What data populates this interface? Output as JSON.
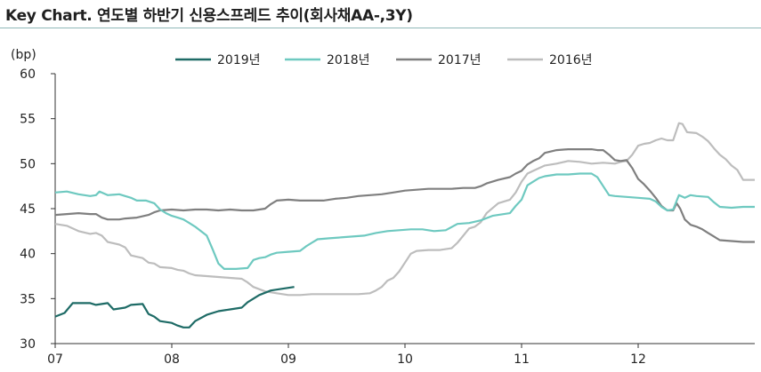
{
  "title": "Key Chart. 연도별 하반기 신용스프레드 추이(회사채AA-,3Y)",
  "chart_data": {
    "type": "line",
    "title": "Key Chart. 연도별 하반기 신용스프레드 추이(회사채AA-,3Y)",
    "ylabel": "(bp)",
    "xlabel": "",
    "ylim": [
      30,
      60
    ],
    "yticks": [
      "30",
      "35",
      "40",
      "45",
      "50",
      "55",
      "60"
    ],
    "xlim": [
      7,
      13
    ],
    "xticks": [
      {
        "x": 7,
        "label": "07"
      },
      {
        "x": 8,
        "label": "08"
      },
      {
        "x": 9,
        "label": "09"
      },
      {
        "x": 10,
        "label": "10"
      },
      {
        "x": 11,
        "label": "11"
      },
      {
        "x": 12,
        "label": "12"
      }
    ],
    "grid": false,
    "legend_position": "top",
    "series": [
      {
        "name": "2019년",
        "color": "#1e6b66",
        "points": [
          [
            7.0,
            33.0
          ],
          [
            7.08,
            33.4
          ],
          [
            7.15,
            34.5
          ],
          [
            7.3,
            34.5
          ],
          [
            7.35,
            34.3
          ],
          [
            7.45,
            34.5
          ],
          [
            7.5,
            33.8
          ],
          [
            7.6,
            34.0
          ],
          [
            7.65,
            34.3
          ],
          [
            7.75,
            34.4
          ],
          [
            7.8,
            33.3
          ],
          [
            7.85,
            33.0
          ],
          [
            7.9,
            32.5
          ],
          [
            8.0,
            32.3
          ],
          [
            8.05,
            32.0
          ],
          [
            8.1,
            31.8
          ],
          [
            8.15,
            31.8
          ],
          [
            8.2,
            32.5
          ],
          [
            8.3,
            33.2
          ],
          [
            8.4,
            33.6
          ],
          [
            8.5,
            33.8
          ],
          [
            8.6,
            34.0
          ],
          [
            8.65,
            34.6
          ],
          [
            8.75,
            35.4
          ],
          [
            8.85,
            35.9
          ],
          [
            8.95,
            36.1
          ],
          [
            9.05,
            36.3
          ]
        ]
      },
      {
        "name": "2018년",
        "color": "#6ec9c0",
        "points": [
          [
            7.0,
            46.8
          ],
          [
            7.1,
            46.9
          ],
          [
            7.2,
            46.6
          ],
          [
            7.3,
            46.4
          ],
          [
            7.35,
            46.5
          ],
          [
            7.38,
            46.9
          ],
          [
            7.45,
            46.5
          ],
          [
            7.55,
            46.6
          ],
          [
            7.6,
            46.4
          ],
          [
            7.65,
            46.2
          ],
          [
            7.7,
            45.9
          ],
          [
            7.78,
            45.9
          ],
          [
            7.85,
            45.6
          ],
          [
            7.9,
            44.9
          ],
          [
            7.95,
            44.5
          ],
          [
            8.0,
            44.2
          ],
          [
            8.05,
            44.0
          ],
          [
            8.1,
            43.8
          ],
          [
            8.15,
            43.4
          ],
          [
            8.2,
            43.0
          ],
          [
            8.3,
            42.0
          ],
          [
            8.35,
            40.5
          ],
          [
            8.4,
            38.9
          ],
          [
            8.45,
            38.3
          ],
          [
            8.55,
            38.3
          ],
          [
            8.65,
            38.4
          ],
          [
            8.7,
            39.3
          ],
          [
            8.75,
            39.5
          ],
          [
            8.8,
            39.6
          ],
          [
            8.85,
            39.9
          ],
          [
            8.9,
            40.1
          ],
          [
            9.0,
            40.2
          ],
          [
            9.1,
            40.3
          ],
          [
            9.15,
            40.8
          ],
          [
            9.2,
            41.2
          ],
          [
            9.25,
            41.6
          ],
          [
            9.35,
            41.7
          ],
          [
            9.45,
            41.8
          ],
          [
            9.55,
            41.9
          ],
          [
            9.65,
            42.0
          ],
          [
            9.75,
            42.3
          ],
          [
            9.85,
            42.5
          ],
          [
            9.95,
            42.6
          ],
          [
            10.05,
            42.7
          ],
          [
            10.15,
            42.7
          ],
          [
            10.25,
            42.5
          ],
          [
            10.35,
            42.6
          ],
          [
            10.45,
            43.3
          ],
          [
            10.55,
            43.4
          ],
          [
            10.65,
            43.7
          ],
          [
            10.75,
            44.2
          ],
          [
            10.8,
            44.3
          ],
          [
            10.9,
            44.5
          ],
          [
            10.95,
            45.3
          ],
          [
            11.0,
            46.0
          ],
          [
            11.05,
            47.6
          ],
          [
            11.1,
            48.0
          ],
          [
            11.15,
            48.4
          ],
          [
            11.2,
            48.6
          ],
          [
            11.3,
            48.8
          ],
          [
            11.4,
            48.8
          ],
          [
            11.5,
            48.9
          ],
          [
            11.6,
            48.9
          ],
          [
            11.65,
            48.5
          ],
          [
            11.7,
            47.5
          ],
          [
            11.75,
            46.5
          ],
          [
            11.8,
            46.4
          ],
          [
            11.9,
            46.3
          ],
          [
            12.0,
            46.2
          ],
          [
            12.1,
            46.1
          ],
          [
            12.15,
            45.8
          ],
          [
            12.2,
            45.2
          ],
          [
            12.25,
            44.8
          ],
          [
            12.3,
            44.9
          ],
          [
            12.35,
            46.5
          ],
          [
            12.4,
            46.2
          ],
          [
            12.45,
            46.5
          ],
          [
            12.5,
            46.4
          ],
          [
            12.6,
            46.3
          ],
          [
            12.65,
            45.7
          ],
          [
            12.7,
            45.2
          ],
          [
            12.8,
            45.1
          ],
          [
            12.9,
            45.2
          ],
          [
            13.0,
            45.2
          ]
        ]
      },
      {
        "name": "2017년",
        "color": "#7f7f7f",
        "points": [
          [
            7.0,
            44.3
          ],
          [
            7.1,
            44.4
          ],
          [
            7.2,
            44.5
          ],
          [
            7.3,
            44.4
          ],
          [
            7.35,
            44.4
          ],
          [
            7.4,
            44.0
          ],
          [
            7.45,
            43.8
          ],
          [
            7.55,
            43.8
          ],
          [
            7.6,
            43.9
          ],
          [
            7.7,
            44.0
          ],
          [
            7.8,
            44.3
          ],
          [
            7.85,
            44.6
          ],
          [
            7.9,
            44.8
          ],
          [
            8.0,
            44.9
          ],
          [
            8.1,
            44.8
          ],
          [
            8.2,
            44.9
          ],
          [
            8.3,
            44.9
          ],
          [
            8.4,
            44.8
          ],
          [
            8.5,
            44.9
          ],
          [
            8.6,
            44.8
          ],
          [
            8.7,
            44.8
          ],
          [
            8.8,
            45.0
          ],
          [
            8.85,
            45.5
          ],
          [
            8.9,
            45.9
          ],
          [
            9.0,
            46.0
          ],
          [
            9.1,
            45.9
          ],
          [
            9.2,
            45.9
          ],
          [
            9.3,
            45.9
          ],
          [
            9.4,
            46.1
          ],
          [
            9.5,
            46.2
          ],
          [
            9.6,
            46.4
          ],
          [
            9.7,
            46.5
          ],
          [
            9.8,
            46.6
          ],
          [
            9.9,
            46.8
          ],
          [
            10.0,
            47.0
          ],
          [
            10.1,
            47.1
          ],
          [
            10.2,
            47.2
          ],
          [
            10.3,
            47.2
          ],
          [
            10.4,
            47.2
          ],
          [
            10.5,
            47.3
          ],
          [
            10.6,
            47.3
          ],
          [
            10.65,
            47.5
          ],
          [
            10.7,
            47.8
          ],
          [
            10.75,
            48.0
          ],
          [
            10.8,
            48.2
          ],
          [
            10.9,
            48.5
          ],
          [
            10.95,
            48.9
          ],
          [
            11.0,
            49.2
          ],
          [
            11.05,
            49.9
          ],
          [
            11.1,
            50.3
          ],
          [
            11.15,
            50.6
          ],
          [
            11.2,
            51.2
          ],
          [
            11.3,
            51.5
          ],
          [
            11.4,
            51.6
          ],
          [
            11.5,
            51.6
          ],
          [
            11.6,
            51.6
          ],
          [
            11.65,
            51.5
          ],
          [
            11.7,
            51.5
          ],
          [
            11.75,
            51.0
          ],
          [
            11.8,
            50.4
          ],
          [
            11.85,
            50.3
          ],
          [
            11.9,
            50.4
          ],
          [
            11.95,
            49.5
          ],
          [
            12.0,
            48.3
          ],
          [
            12.05,
            47.7
          ],
          [
            12.1,
            47.0
          ],
          [
            12.15,
            46.2
          ],
          [
            12.2,
            45.3
          ],
          [
            12.25,
            44.8
          ],
          [
            12.3,
            44.8
          ],
          [
            12.33,
            45.6
          ],
          [
            12.36,
            45.0
          ],
          [
            12.4,
            43.8
          ],
          [
            12.45,
            43.2
          ],
          [
            12.5,
            43.0
          ],
          [
            12.55,
            42.7
          ],
          [
            12.6,
            42.3
          ],
          [
            12.65,
            41.9
          ],
          [
            12.7,
            41.5
          ],
          [
            12.8,
            41.4
          ],
          [
            12.9,
            41.3
          ],
          [
            13.0,
            41.3
          ]
        ]
      },
      {
        "name": "2016년",
        "color": "#bdbdbd",
        "points": [
          [
            7.0,
            43.3
          ],
          [
            7.1,
            43.1
          ],
          [
            7.2,
            42.5
          ],
          [
            7.3,
            42.2
          ],
          [
            7.35,
            42.3
          ],
          [
            7.4,
            42.0
          ],
          [
            7.45,
            41.3
          ],
          [
            7.55,
            41.0
          ],
          [
            7.6,
            40.7
          ],
          [
            7.65,
            39.8
          ],
          [
            7.75,
            39.5
          ],
          [
            7.8,
            39.0
          ],
          [
            7.85,
            38.9
          ],
          [
            7.9,
            38.5
          ],
          [
            8.0,
            38.4
          ],
          [
            8.05,
            38.2
          ],
          [
            8.1,
            38.1
          ],
          [
            8.15,
            37.8
          ],
          [
            8.2,
            37.6
          ],
          [
            8.3,
            37.5
          ],
          [
            8.4,
            37.4
          ],
          [
            8.5,
            37.3
          ],
          [
            8.6,
            37.2
          ],
          [
            8.65,
            36.8
          ],
          [
            8.7,
            36.3
          ],
          [
            8.8,
            35.8
          ],
          [
            8.9,
            35.6
          ],
          [
            9.0,
            35.4
          ],
          [
            9.1,
            35.4
          ],
          [
            9.2,
            35.5
          ],
          [
            9.3,
            35.5
          ],
          [
            9.4,
            35.5
          ],
          [
            9.5,
            35.5
          ],
          [
            9.6,
            35.5
          ],
          [
            9.7,
            35.6
          ],
          [
            9.75,
            35.9
          ],
          [
            9.8,
            36.3
          ],
          [
            9.85,
            37.0
          ],
          [
            9.9,
            37.3
          ],
          [
            9.95,
            38.0
          ],
          [
            10.0,
            39.0
          ],
          [
            10.05,
            40.0
          ],
          [
            10.1,
            40.3
          ],
          [
            10.2,
            40.4
          ],
          [
            10.3,
            40.4
          ],
          [
            10.4,
            40.6
          ],
          [
            10.45,
            41.2
          ],
          [
            10.5,
            42.0
          ],
          [
            10.55,
            42.8
          ],
          [
            10.6,
            43.0
          ],
          [
            10.65,
            43.5
          ],
          [
            10.7,
            44.5
          ],
          [
            10.8,
            45.6
          ],
          [
            10.9,
            46.0
          ],
          [
            10.95,
            46.8
          ],
          [
            11.0,
            48.0
          ],
          [
            11.05,
            48.9
          ],
          [
            11.1,
            49.2
          ],
          [
            11.2,
            49.8
          ],
          [
            11.3,
            50.0
          ],
          [
            11.4,
            50.3
          ],
          [
            11.5,
            50.2
          ],
          [
            11.6,
            50.0
          ],
          [
            11.7,
            50.1
          ],
          [
            11.8,
            50.0
          ],
          [
            11.85,
            50.2
          ],
          [
            11.9,
            50.3
          ],
          [
            11.95,
            51.0
          ],
          [
            12.0,
            52.0
          ],
          [
            12.05,
            52.2
          ],
          [
            12.1,
            52.3
          ],
          [
            12.15,
            52.6
          ],
          [
            12.2,
            52.8
          ],
          [
            12.25,
            52.6
          ],
          [
            12.3,
            52.6
          ],
          [
            12.35,
            54.5
          ],
          [
            12.38,
            54.4
          ],
          [
            12.42,
            53.5
          ],
          [
            12.5,
            53.4
          ],
          [
            12.55,
            53.0
          ],
          [
            12.6,
            52.5
          ],
          [
            12.65,
            51.7
          ],
          [
            12.7,
            51.0
          ],
          [
            12.75,
            50.5
          ],
          [
            12.8,
            49.8
          ],
          [
            12.85,
            49.3
          ],
          [
            12.9,
            48.2
          ],
          [
            13.0,
            48.2
          ]
        ]
      }
    ]
  }
}
